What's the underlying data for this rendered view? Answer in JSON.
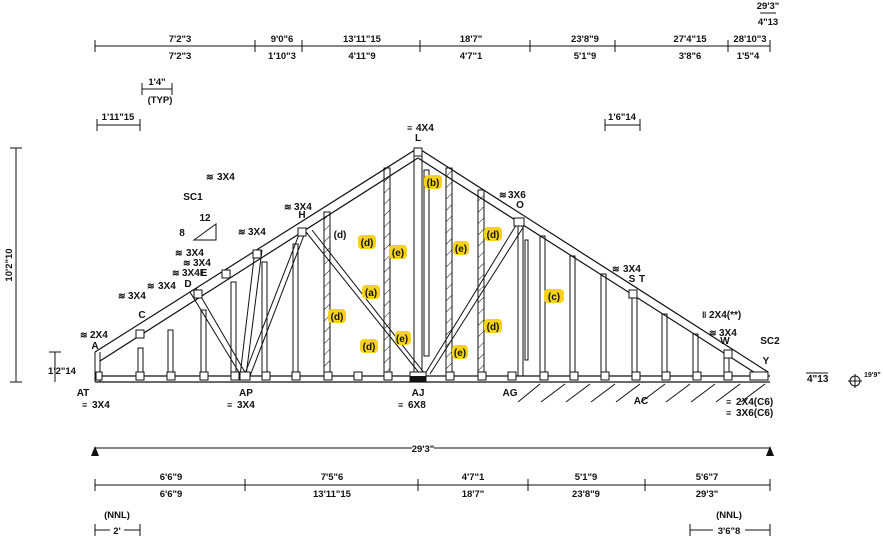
{
  "overall_span": "29'3\"",
  "overall_height": "10'2\"10",
  "heel_height": "1'2\"14",
  "right_heel": "4\"13",
  "top_right": {
    "a": "29'3\"",
    "b": "4\"13"
  },
  "small_dims": {
    "rise_left": "1'4\"",
    "typ": "(TYP)",
    "left_over": "1'11\"15",
    "right_over": "1'6\"14"
  },
  "pitch": {
    "rise": "8",
    "run": "12"
  },
  "bearing_note": "19'9\"",
  "top_dims_upper": [
    "7'2\"3",
    "9'0\"6",
    "13'11\"15",
    "18'7\"",
    "23'8\"9",
    "27'4\"15",
    "28'10\"3"
  ],
  "top_dims_lower": [
    "7'2\"3",
    "1'10\"3",
    "4'11\"9",
    "4'7\"1",
    "5'1\"9",
    "3'8\"6",
    "1'5\"4"
  ],
  "bottom_dims_upper": [
    "6'6\"9",
    "7'5\"6",
    "4'7\"1",
    "5'1\"9",
    "5'6\"7"
  ],
  "bottom_dims_lower": [
    "6'6\"9",
    "13'11\"15",
    "18'7\"",
    "23'8\"9",
    "29'3\""
  ],
  "nnl_left": {
    "label": "(NNL)",
    "value": "2'"
  },
  "nnl_right": {
    "label": "(NNL)",
    "value": "3'6\"8"
  },
  "joints": {
    "A": "A",
    "C": "C",
    "D": "D",
    "E": "E",
    "H": "H",
    "L": "L",
    "O": "O",
    "S": "S",
    "T": "T",
    "W": "W",
    "Y": "Y",
    "AT": "AT",
    "AP": "AP",
    "AJ": "AJ",
    "AG": "AG",
    "AC": "AC",
    "SC1": "SC1",
    "SC2": "SC2"
  },
  "plates": {
    "L": "4X4",
    "O": "3X6",
    "H": "3X4",
    "upper_left": "3X4",
    "left_mid": "3X4",
    "E1": "3X4",
    "E2": "3X4",
    "E3": "3X4E",
    "D": "3X4",
    "C": "3X4",
    "A": "2X4",
    "T": "3X4",
    "Wright": "2X4(**)",
    "W": "3X4",
    "AT": "3X4",
    "AP": "3X4",
    "AJ": "6X8",
    "Y1": "2X4(C6)",
    "Y2": "3X6(C6)"
  },
  "callouts": [
    "(b)",
    "(d)",
    "(d)",
    "(e)",
    "(e)",
    "(d)",
    "(a)",
    "(c)",
    "(d)",
    "(d)",
    "(e)",
    "(d)",
    "(e)"
  ]
}
